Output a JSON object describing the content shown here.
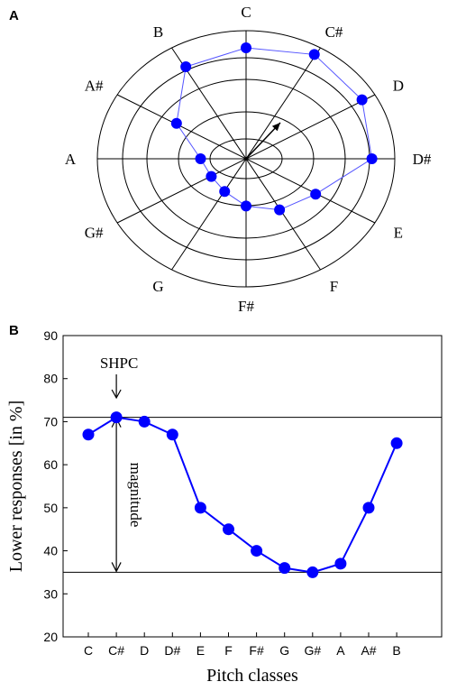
{
  "figure": {
    "panel_a_label": "A",
    "panel_b_label": "B"
  },
  "chart_data": [
    {
      "type": "polar",
      "panel": "A",
      "categories": [
        "C",
        "C#",
        "D",
        "D#",
        "E",
        "F",
        "F#",
        "G",
        "G#",
        "A",
        "A#",
        "B"
      ],
      "values": [
        67,
        71,
        70,
        67,
        50,
        45,
        40,
        36,
        35,
        37,
        50,
        65
      ],
      "series_color": "#0000ff",
      "line_color": "#5555ff",
      "arrow": "resultant vector",
      "grid": true
    },
    {
      "type": "line",
      "panel": "B",
      "categories": [
        "C",
        "C#",
        "D",
        "D#",
        "E",
        "F",
        "F#",
        "G",
        "G#",
        "A",
        "A#",
        "B"
      ],
      "values": [
        67,
        71,
        70,
        67,
        50,
        45,
        40,
        36,
        35,
        37,
        50,
        65
      ],
      "xlabel": "Pitch classes",
      "ylabel": "Lower  responses [in %]",
      "ylim": [
        20,
        90
      ],
      "yticks": [
        20,
        30,
        40,
        50,
        60,
        70,
        80,
        90
      ],
      "reference_lines": [
        71,
        35
      ],
      "annotations": {
        "peak_label": "SHPC",
        "range_label": "magnitude"
      },
      "series_color": "#0000ff",
      "grid": false
    }
  ]
}
